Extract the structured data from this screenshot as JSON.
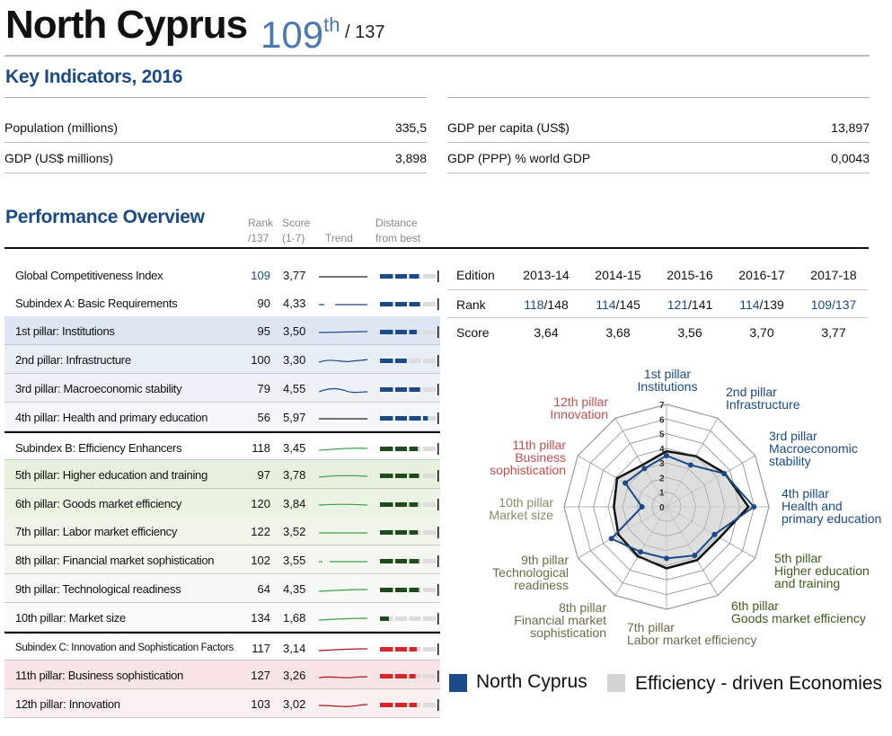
{
  "header": {
    "country": "North Cyprus",
    "rank": "109",
    "rank_suffix": "th",
    "rank_total": "/ 137"
  },
  "key_indicators": {
    "title": "Key Indicators, 2016",
    "left": [
      {
        "label": "Population (millions)",
        "value": "335,5"
      },
      {
        "label": "GDP (US$ millions)",
        "value": "3,898"
      }
    ],
    "right": [
      {
        "label": "GDP per capita (US$)",
        "value": "13,897"
      },
      {
        "label": "GDP (PPP)  % world GDP",
        "value": "0,0043"
      }
    ]
  },
  "performance": {
    "title": "Performance Overview",
    "col_rank": "Rank",
    "col_rank_sub": "/137",
    "col_score": "Score",
    "col_score_sub": "(1-7)",
    "col_trend": "Trend",
    "col_dist": "Distance",
    "col_dist_sub": "from best",
    "rows": [
      {
        "label": "Global Competitiveness Index",
        "rank": "109",
        "score": "3,77",
        "group": "blue",
        "bg": "#ffffff",
        "rank_blue": true,
        "distance": 0.7
      },
      {
        "label": "Subindex A: Basic Requirements",
        "rank": "90",
        "score": "4,33",
        "group": "blue",
        "bg": "#ffffff",
        "distance": 0.72
      },
      {
        "label": "1st pillar: Institutions",
        "rank": "95",
        "score": "3,50",
        "group": "blue",
        "bg": "#dde6f2",
        "distance": 0.66
      },
      {
        "label": "2nd pillar: Infrastructure",
        "rank": "100",
        "score": "3,30",
        "group": "blue",
        "bg": "#e8eef6",
        "distance": 0.48
      },
      {
        "label": "3rd pillar: Macroeconomic stability",
        "rank": "79",
        "score": "4,55",
        "group": "blue",
        "bg": "#eef2f8",
        "distance": 0.72
      },
      {
        "label": "4th pillar: Health and primary education",
        "rank": "56",
        "score": "5,97",
        "group": "blue",
        "bg": "#f4f7fb",
        "distance": 0.86
      },
      {
        "label": "Subindex B: Efficiency Enhancers",
        "rank": "118",
        "score": "3,45",
        "group": "green",
        "bg": "#ffffff",
        "distance": 0.68
      },
      {
        "label": "5th pillar: Higher education and training",
        "rank": "97",
        "score": "3,78",
        "group": "green",
        "bg": "#e6f0dc",
        "distance": 0.7
      },
      {
        "label": "6th pillar: Goods market efficiency",
        "rank": "120",
        "score": "3,84",
        "group": "green",
        "bg": "#ebf3e3",
        "distance": 0.68
      },
      {
        "label": "7th pillar: Labor market efficiency",
        "rank": "122",
        "score": "3,52",
        "group": "green",
        "bg": "#eff5e9",
        "distance": 0.68
      },
      {
        "label": "8th pillar: Financial market sophistication",
        "rank": "102",
        "score": "3,55",
        "group": "green",
        "bg": "#f3f7ef",
        "distance": 0.7
      },
      {
        "label": "9th pillar: Technological readiness",
        "rank": "64",
        "score": "4,35",
        "group": "green",
        "bg": "#f7faf4",
        "distance": 0.7
      },
      {
        "label": "10th pillar: Market size",
        "rank": "134",
        "score": "1,68",
        "group": "green",
        "bg": "#fbfcf9",
        "distance": 0.16
      },
      {
        "label": "Subindex C: Innovation and Sophistication Factors",
        "rank": "117",
        "score": "3,14",
        "group": "red",
        "bg": "#ffffff",
        "distance": 0.66,
        "small": true
      },
      {
        "label": "11th pillar: Business sophistication",
        "rank": "127",
        "score": "3,26",
        "group": "red",
        "bg": "#f8e4e4",
        "distance": 0.64
      },
      {
        "label": "12th pillar: Innovation",
        "rank": "103",
        "score": "3,02",
        "group": "red",
        "bg": "#fbf0f0",
        "distance": 0.66
      }
    ]
  },
  "editions": {
    "header": {
      "label": "Edition",
      "values": [
        "2013-14",
        "2014-15",
        "2015-16",
        "2016-17",
        "2017-18"
      ]
    },
    "rank": {
      "label": "Rank",
      "values": [
        [
          "118",
          "/148"
        ],
        [
          "114",
          "/145"
        ],
        [
          "121",
          "/141"
        ],
        [
          "114",
          "/139"
        ],
        [
          "109",
          "/137"
        ]
      ]
    },
    "score": {
      "label": "Score",
      "values": [
        "3,64",
        "3,68",
        "3,56",
        "3,70",
        "3,77"
      ]
    }
  },
  "chart_data": {
    "type": "radar",
    "scale_labels": [
      "0",
      "1",
      "2",
      "3",
      "4",
      "5",
      "6",
      "7"
    ],
    "range": [
      0,
      7
    ],
    "categories": [
      "1st pillar Institutions",
      "2nd pillar Infrastructure",
      "3rd pillar Macroeconomic stability",
      "4th pillar Health and primary education",
      "5th pillar Higher education and training",
      "6th pillar Goods market efficiency",
      "7th pillar Labor market efficiency",
      "8th pillar Financial market sophistication",
      "9th pillar Technological readiness",
      "10th pillar Market size",
      "11th pillar Business sophistication",
      "12th pillar Innovation"
    ],
    "series": [
      {
        "name": "North Cyprus",
        "values": [
          3.5,
          3.3,
          4.55,
          5.97,
          3.78,
          3.84,
          3.52,
          3.55,
          4.35,
          1.68,
          3.26,
          3.02
        ],
        "color": "#1a4a88"
      },
      {
        "name": "Efficiency - driven Economies",
        "values": [
          3.8,
          4.0,
          4.6,
          5.6,
          4.2,
          4.2,
          4.2,
          3.9,
          3.8,
          3.6,
          3.9,
          3.3
        ],
        "color": "#d3d3d3"
      }
    ]
  },
  "radar_labels": [
    {
      "lines": [
        "1st pillar",
        "Institutions"
      ],
      "color": "#1a4a88"
    },
    {
      "lines": [
        "2nd pillar",
        "Infrastructure"
      ],
      "color": "#1a4a88"
    },
    {
      "lines": [
        "3rd pillar",
        "Macroeconomic",
        "stability"
      ],
      "color": "#1a4a88"
    },
    {
      "lines": [
        "4th pillar",
        "Health and",
        "primary education"
      ],
      "color": "#1a4a88"
    },
    {
      "lines": [
        "5th pillar",
        "Higher education",
        "and training"
      ],
      "color": "#3d5c1e"
    },
    {
      "lines": [
        "6th pillar",
        "Goods market efficiency"
      ],
      "color": "#3d5c1e"
    },
    {
      "lines": [
        "7th pillar",
        "Labor market efficiency"
      ],
      "color": "#6b6b4a"
    },
    {
      "lines": [
        "8th pillar",
        "Financial market",
        "sophistication"
      ],
      "color": "#6b6b4a"
    },
    {
      "lines": [
        "9th pillar",
        "Technological",
        "readiness"
      ],
      "color": "#6b6b4a"
    },
    {
      "lines": [
        "10th pillar",
        "Market size"
      ],
      "color": "#8a8a6a"
    },
    {
      "lines": [
        "11th pillar",
        "Business",
        "sophistication"
      ],
      "color": "#c0504d"
    },
    {
      "lines": [
        "12th pillar",
        "Innovation"
      ],
      "color": "#c0504d"
    }
  ],
  "legend": {
    "country": "North Cyprus",
    "group": "Efficiency - driven Economies"
  },
  "colors": {
    "blue": "#1a4a88",
    "green": "#1e4a1e",
    "red": "#d9262b",
    "trend_blue": "#1a4a88",
    "trend_green": "#3aa04a",
    "trend_red": "#a01818"
  }
}
